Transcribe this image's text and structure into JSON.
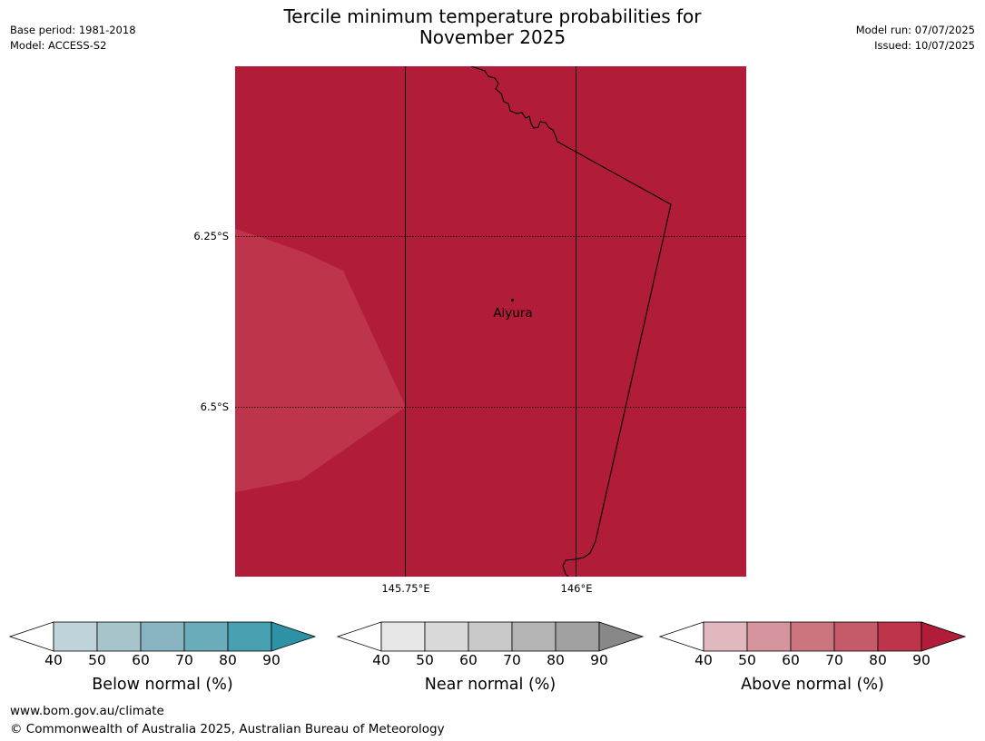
{
  "header": {
    "title_line1": "Tercile minimum temperature probabilities for",
    "title_line2": "November 2025",
    "base_period": "Base period: 1981-2018",
    "model": "Model: ACCESS-S2",
    "model_run": "Model run: 07/07/2025",
    "issued": "Issued: 10/07/2025"
  },
  "map": {
    "latitudes": [
      "6.25°S",
      "6.5°S"
    ],
    "longitudes": [
      "145.75°E",
      "146°E"
    ],
    "place": "Aiyura",
    "region_colors": {
      "above_90": "#b11c38",
      "above_80_90": "#be354b"
    }
  },
  "legends": [
    {
      "label": "Below normal (%)",
      "ticks": [
        "40",
        "50",
        "60",
        "70",
        "80",
        "90"
      ],
      "colors": [
        "#bfd4da",
        "#a7c4ca",
        "#88b5c1",
        "#6bacbb",
        "#46a0b0",
        "#2d93a4"
      ]
    },
    {
      "label": "Near normal (%)",
      "ticks": [
        "40",
        "50",
        "60",
        "70",
        "80",
        "90"
      ],
      "colors": [
        "#e6e6e6",
        "#d9d9d9",
        "#c9c9c9",
        "#b4b4b4",
        "#a0a0a0",
        "#888888"
      ]
    },
    {
      "label": "Above normal (%)",
      "ticks": [
        "40",
        "50",
        "60",
        "70",
        "80",
        "90"
      ],
      "colors": [
        "#e2b8bf",
        "#d6949e",
        "#cc757e",
        "#c55a69",
        "#be354b",
        "#b11c38"
      ]
    }
  ],
  "footer": {
    "url": "www.bom.gov.au/climate",
    "copyright": "© Commonwealth of Australia 2025, Australian Bureau of Meteorology"
  }
}
